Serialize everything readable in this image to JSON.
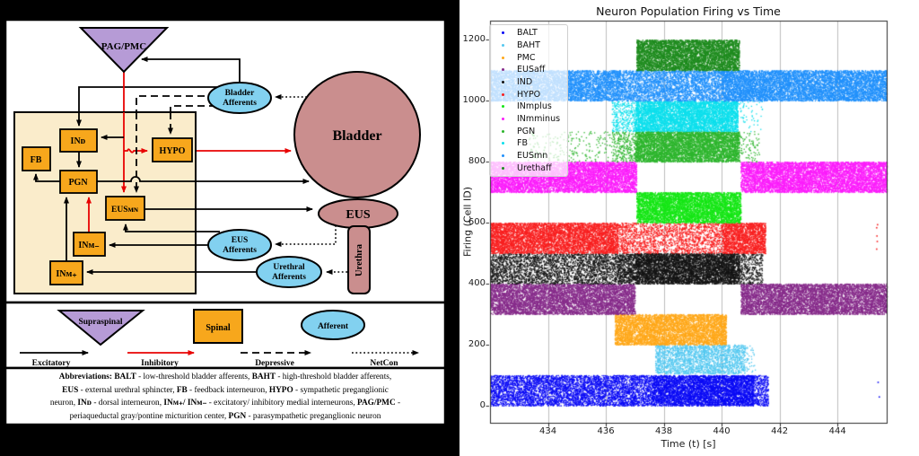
{
  "left_panel": {
    "colors": {
      "background": "#000000",
      "panel": "#ffffff",
      "supraspinal_purple": "#b69bd6",
      "spinal_orange": "#f7a71c",
      "afferent_blue": "#82d1f0",
      "organ_rose": "#ca8e8e",
      "spinal_cord_tan": "#faeccb",
      "inhibitory_red": "#e80202",
      "excitatory_black": "#000000"
    },
    "nodes": {
      "pag_pmc": "PAG/PMC",
      "bladder_afferents_l1": "Bladder",
      "bladder_afferents_l2": "Afferents",
      "bladder": "Bladder",
      "ind": "INᴅ",
      "fb": "FB",
      "pgn": "PGN",
      "hypo": "HYPO",
      "eusmn": "EUSᴍɴ",
      "inm_minus": "INᴍ₋",
      "inm_plus": "INᴍ₊",
      "eus_afferents_l1": "EUS",
      "eus_afferents_l2": "Afferents",
      "urethral_afferents_l1": "Urethral",
      "urethral_afferents_l2": "Afferents",
      "eus": "EUS",
      "urethra": "Urethra"
    },
    "legend": {
      "supraspinal": "Supraspinal",
      "spinal": "Spinal",
      "afferent": "Afferent",
      "excitatory": "Excitatory",
      "inhibitory": "Inhibitory",
      "depressive": "Depressive",
      "netcon": "NetCon"
    },
    "abbreviations": [
      [
        {
          "t": "Abbreviations: ",
          "b": true
        },
        {
          "t": "BALT",
          "b": true
        },
        {
          "t": " - low-threshold bladder afferents, ",
          "b": false
        },
        {
          "t": "BAHT",
          "b": true
        },
        {
          "t": " - high-threshold bladder afferents,",
          "b": false
        }
      ],
      [
        {
          "t": "EUS",
          "b": true
        },
        {
          "t": " - external urethral sphincter, ",
          "b": false
        },
        {
          "t": "FB",
          "b": true
        },
        {
          "t": " - feedback interneuron, ",
          "b": false
        },
        {
          "t": "HYPO",
          "b": true
        },
        {
          "t": " - sympathetic preganglionic",
          "b": false
        }
      ],
      [
        {
          "t": "neuron, ",
          "b": false
        },
        {
          "t": "INᴅ",
          "b": true
        },
        {
          "t": " - dorsal interneuron, ",
          "b": false
        },
        {
          "t": "INᴍ₊/ INᴍ₋",
          "b": true
        },
        {
          "t": " - excitatory/ inhibitory medial interneurons, ",
          "b": false
        },
        {
          "t": "PAG/PMC",
          "b": true
        },
        {
          "t": " -",
          "b": false
        }
      ],
      [
        {
          "t": "periaqueductal gray/pontine micturition center, ",
          "b": false
        },
        {
          "t": "PGN",
          "b": true
        },
        {
          "t": " - parasympathetic preganglionic neuron",
          "b": false
        }
      ]
    ]
  },
  "chart_data": {
    "type": "scatter",
    "title": "Neuron Population Firing vs Time",
    "xlabel": "Time (t) [s]",
    "ylabel": "Firing (Cell ID)",
    "xlim": [
      432.0,
      445.7
    ],
    "ylim": [
      -57,
      1262
    ],
    "x_ticks": [
      434,
      436,
      438,
      440,
      442,
      444
    ],
    "y_ticks": [
      0,
      200,
      400,
      600,
      800,
      1000,
      1200
    ],
    "grid": "vertical",
    "grid_color": "#bdbdbd",
    "legend_position": "upper-left",
    "series": [
      {
        "name": "BALT",
        "color": "#0a0af5",
        "id_range": [
          0,
          100
        ],
        "segments": [
          [
            432.0,
            437.6,
            0.55
          ],
          [
            437.6,
            441.1,
            0.95
          ],
          [
            441.1,
            441.6,
            0.45
          ]
        ],
        "outliers": [
          [
            445.38,
            78
          ],
          [
            445.42,
            30
          ]
        ]
      },
      {
        "name": "BAHT",
        "color": "#55c8f0",
        "id_range": [
          105,
          200
        ],
        "segments": [
          [
            437.7,
            440.8,
            0.5
          ],
          [
            440.8,
            441.15,
            0.08
          ]
        ],
        "outliers": []
      },
      {
        "name": "PMC",
        "color": "#ffa718",
        "id_range": [
          200,
          300
        ],
        "segments": [
          [
            436.3,
            440.15,
            0.85
          ]
        ],
        "outliers": []
      },
      {
        "name": "EUSaff",
        "color": "#862b8a",
        "id_range": [
          300,
          400
        ],
        "segments": [
          [
            432.0,
            437.0,
            0.8
          ],
          [
            440.65,
            445.7,
            0.8
          ]
        ],
        "outliers": []
      },
      {
        "name": "IND",
        "color": "#141414",
        "id_range": [
          400,
          500
        ],
        "segments": [
          [
            432.0,
            436.4,
            0.38
          ],
          [
            436.4,
            437.0,
            0.6
          ],
          [
            437.0,
            440.6,
            0.95
          ],
          [
            440.6,
            441.4,
            0.28
          ]
        ],
        "outliers": []
      },
      {
        "name": "HYPO",
        "color": "#f81f1f",
        "id_range": [
          500,
          600
        ],
        "segments": [
          [
            432.0,
            436.4,
            0.8
          ],
          [
            436.4,
            440.0,
            0.3
          ],
          [
            440.0,
            441.5,
            0.8
          ]
        ],
        "outliers": [
          [
            445.33,
            585
          ],
          [
            445.34,
            558
          ],
          [
            445.35,
            540
          ],
          [
            445.33,
            515
          ],
          [
            445.36,
            595
          ]
        ]
      },
      {
        "name": "INmplus",
        "color": "#15e615",
        "id_range": [
          600,
          700
        ],
        "segments": [
          [
            437.05,
            440.65,
            0.97
          ]
        ],
        "outliers": []
      },
      {
        "name": "INmminus",
        "color": "#fb1cfb",
        "id_range": [
          700,
          800
        ],
        "segments": [
          [
            432.0,
            437.05,
            0.85
          ],
          [
            440.65,
            445.7,
            0.85
          ]
        ],
        "outliers": []
      },
      {
        "name": "PGN",
        "color": "#2db52d",
        "id_range": [
          800,
          900
        ],
        "segments": [
          [
            433.3,
            436.2,
            0.05
          ],
          [
            436.2,
            437.0,
            0.22
          ],
          [
            437.0,
            440.6,
            0.95
          ],
          [
            440.6,
            441.3,
            0.08
          ]
        ],
        "outliers": []
      },
      {
        "name": "FB",
        "color": "#0cdfec",
        "id_range": [
          900,
          1000
        ],
        "segments": [
          [
            436.2,
            437.0,
            0.25
          ],
          [
            437.0,
            440.55,
            0.95
          ],
          [
            440.55,
            441.4,
            0.04
          ]
        ],
        "outliers": []
      },
      {
        "name": "EUSmn",
        "color": "#2090fb",
        "id_range": [
          1000,
          1100
        ],
        "segments": [
          [
            432.0,
            436.5,
            0.75
          ],
          [
            436.5,
            440.0,
            0.55
          ],
          [
            440.0,
            441.9,
            0.85
          ],
          [
            441.9,
            445.7,
            0.8
          ]
        ],
        "outliers": []
      },
      {
        "name": "Urethaff",
        "color": "#1e8b1e",
        "id_range": [
          1100,
          1200
        ],
        "segments": [
          [
            437.05,
            440.6,
            0.95
          ]
        ],
        "outliers": []
      }
    ]
  }
}
